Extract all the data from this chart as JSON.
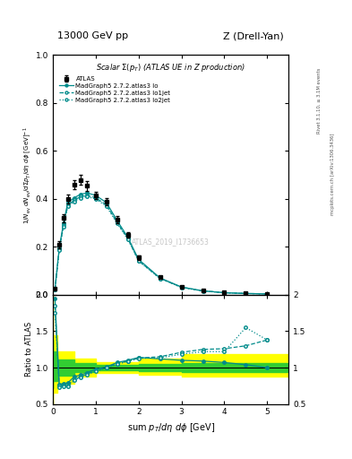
{
  "title_left": "13000 GeV pp",
  "title_right": "Z (Drell-Yan)",
  "plot_title": "Scalar Σ(p_{T}) (ATLAS UE in Z production)",
  "xlabel": "sum p_{T}/dη dφ [GeV]",
  "ylabel_main": "1/N_{ev} dN_{ev}/dsum p_{T}/dη dφ  [GeV]^{-1}",
  "ylabel_ratio": "Ratio to ATLAS",
  "watermark": "ATLAS_2019_I1736653",
  "rivet_text": "Rivet 3.1.10, ≥ 3.1M events",
  "arxiv_text": "mcplots.cern.ch [arXiv:1306.3436]",
  "atlas_data_x": [
    0.05,
    0.15,
    0.25,
    0.35,
    0.5,
    0.65,
    0.8,
    1.0,
    1.25,
    1.5,
    1.75,
    2.0,
    2.5,
    3.0,
    3.5,
    4.0,
    4.5,
    5.0
  ],
  "atlas_data_y": [
    0.025,
    0.21,
    0.32,
    0.4,
    0.46,
    0.48,
    0.455,
    0.415,
    0.39,
    0.315,
    0.25,
    0.155,
    0.075,
    0.035,
    0.018,
    0.01,
    0.007,
    0.005
  ],
  "atlas_err_y": [
    0.004,
    0.015,
    0.018,
    0.018,
    0.02,
    0.02,
    0.02,
    0.015,
    0.015,
    0.015,
    0.012,
    0.009,
    0.005,
    0.003,
    0.0015,
    0.001,
    0.001,
    0.001
  ],
  "lo_x": [
    0.05,
    0.15,
    0.25,
    0.35,
    0.5,
    0.65,
    0.8,
    1.0,
    1.25,
    1.5,
    1.75,
    2.0,
    2.5,
    3.0,
    3.5,
    4.0,
    4.5,
    5.0
  ],
  "lo_y": [
    0.024,
    0.195,
    0.3,
    0.385,
    0.405,
    0.42,
    0.425,
    0.415,
    0.385,
    0.31,
    0.24,
    0.148,
    0.071,
    0.033,
    0.017,
    0.009,
    0.006,
    0.004
  ],
  "lo1jet_x": [
    0.05,
    0.15,
    0.25,
    0.35,
    0.5,
    0.65,
    0.8,
    1.0,
    1.25,
    1.5,
    1.75,
    2.0,
    2.5,
    3.0,
    3.5,
    4.0,
    4.5,
    5.0
  ],
  "lo1jet_y": [
    0.023,
    0.19,
    0.29,
    0.375,
    0.395,
    0.41,
    0.415,
    0.405,
    0.375,
    0.302,
    0.235,
    0.143,
    0.069,
    0.032,
    0.017,
    0.0095,
    0.006,
    0.004
  ],
  "lo2jet_x": [
    0.05,
    0.15,
    0.25,
    0.35,
    0.5,
    0.65,
    0.8,
    1.0,
    1.25,
    1.5,
    1.75,
    2.0,
    2.5,
    3.0,
    3.5,
    4.0,
    4.5,
    5.0
  ],
  "lo2jet_y": [
    0.022,
    0.185,
    0.285,
    0.37,
    0.39,
    0.405,
    0.41,
    0.4,
    0.37,
    0.298,
    0.232,
    0.141,
    0.068,
    0.031,
    0.016,
    0.009,
    0.0058,
    0.0038
  ],
  "ratio_lo_x": [
    0.05,
    0.15,
    0.25,
    0.35,
    0.5,
    0.65,
    0.8,
    1.0,
    1.25,
    1.5,
    1.75,
    2.0,
    2.5,
    3.0,
    3.5,
    4.0,
    4.5,
    5.0
  ],
  "ratio_lo_y": [
    1.95,
    0.77,
    0.78,
    0.79,
    0.875,
    0.9,
    0.93,
    0.98,
    1.01,
    1.07,
    1.1,
    1.14,
    1.12,
    1.1,
    1.09,
    1.07,
    1.04,
    1.0
  ],
  "ratio_lo1jet_y": [
    1.85,
    0.75,
    0.755,
    0.755,
    0.84,
    0.875,
    0.91,
    0.96,
    1.0,
    1.055,
    1.09,
    1.13,
    1.15,
    1.21,
    1.25,
    1.26,
    1.3,
    1.38
  ],
  "ratio_lo2jet_y": [
    1.75,
    0.73,
    0.74,
    0.74,
    0.825,
    0.865,
    0.9,
    0.95,
    0.995,
    1.045,
    1.085,
    1.125,
    1.135,
    1.185,
    1.22,
    1.22,
    1.55,
    1.38
  ],
  "yellow_band_x": [
    0.0,
    0.1,
    0.5,
    1.0,
    2.0,
    3.0,
    4.0,
    5.5
  ],
  "yellow_band_low": [
    0.45,
    0.65,
    0.78,
    0.88,
    0.93,
    0.9,
    0.88,
    0.88
  ],
  "yellow_band_high": [
    2.1,
    1.45,
    1.22,
    1.12,
    1.07,
    1.12,
    1.18,
    1.18
  ],
  "green_band_x": [
    0.0,
    0.1,
    0.5,
    1.0,
    2.0,
    3.0,
    4.0,
    5.5
  ],
  "green_band_low": [
    0.72,
    0.82,
    0.89,
    0.94,
    0.965,
    0.95,
    0.94,
    0.94
  ],
  "green_band_high": [
    1.38,
    1.22,
    1.11,
    1.06,
    1.035,
    1.055,
    1.06,
    1.06
  ],
  "line_color": "#008B8B",
  "xlim": [
    0,
    5.5
  ],
  "main_ylim": [
    0,
    1.0
  ],
  "ratio_ylim": [
    0.5,
    2.0
  ],
  "main_yticks": [
    0,
    0.2,
    0.4,
    0.6,
    0.8,
    1.0
  ],
  "ratio_yticks": [
    0.5,
    1.0,
    1.5,
    2.0
  ]
}
